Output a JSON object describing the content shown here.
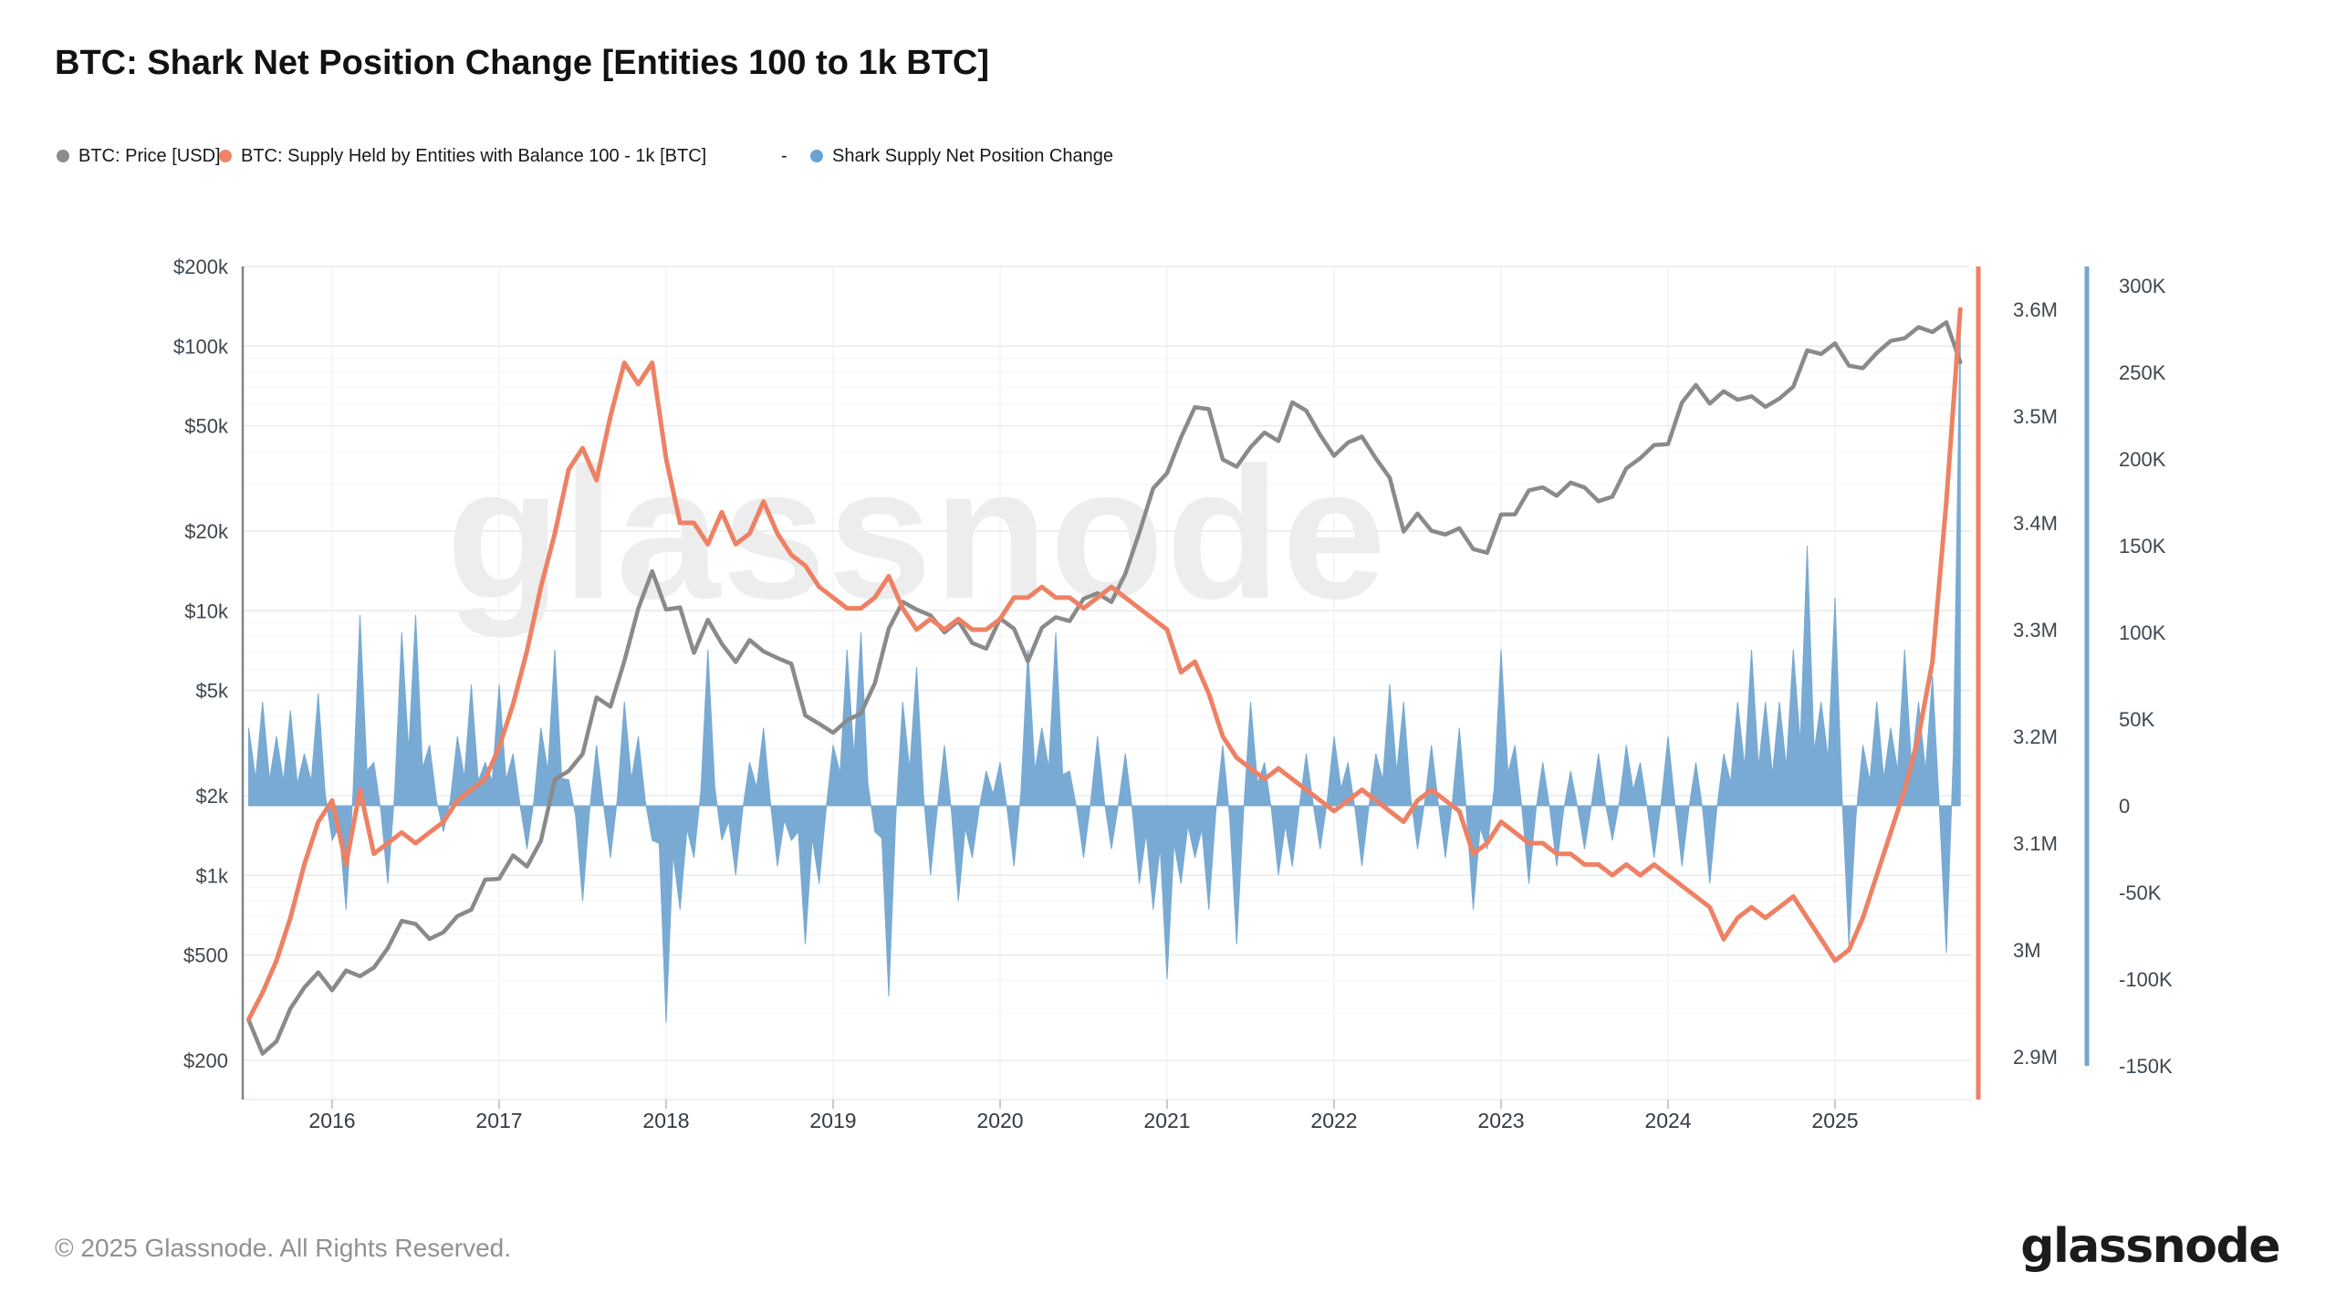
{
  "title": "BTC: Shark Net Position Change [Entities 100 to 1k BTC]",
  "legend": {
    "items": [
      {
        "label": "BTC: Price [USD]",
        "color": "#8c8c8c"
      },
      {
        "label": "BTC: Supply Held by Entities with Balance 100 - 1k [BTC]",
        "color": "#f0846a"
      },
      {
        "label": "-",
        "color": ""
      },
      {
        "label": "Shark Supply Net Position Change",
        "color": "#68a4d3"
      }
    ]
  },
  "watermark": "glassnode",
  "footer": {
    "copyright": "© 2025 Glassnode. All Rights Reserved.",
    "brand": "glassnode"
  },
  "chart_data": {
    "type": "line",
    "title": "BTC: Shark Net Position Change [Entities 100 to 1k BTC]",
    "x_start": "2015-07",
    "x_step": "1 month",
    "x_end": "2025-10",
    "x_ticks": [
      2016,
      2017,
      2018,
      2019,
      2020,
      2021,
      2022,
      2023,
      2024,
      2025
    ],
    "grid": "horizontal-log-major-minor",
    "legend_position": "top-left",
    "axes": {
      "price": {
        "side": "left",
        "scale": "log",
        "unit": "USD",
        "tick_labels": [
          "$200k",
          "$100k",
          "$50k",
          "$20k",
          "$10k",
          "$5k",
          "$2k",
          "$1k",
          "$500",
          "$200"
        ],
        "tick_values": [
          200000,
          100000,
          50000,
          20000,
          10000,
          5000,
          2000,
          1000,
          500,
          200
        ],
        "range": [
          142,
          200000
        ]
      },
      "supply": {
        "side": "right",
        "scale": "linear",
        "unit": "M BTC",
        "tick_labels": [
          "3.6M",
          "3.5M",
          "3.4M",
          "3.3M",
          "3.2M",
          "3.1M",
          "3M",
          "2.9M"
        ],
        "tick_values": [
          3.6,
          3.5,
          3.4,
          3.3,
          3.2,
          3.1,
          3.0,
          2.9
        ],
        "range": [
          2.89,
          3.64
        ]
      },
      "net_position_change": {
        "side": "right-outer",
        "scale": "linear",
        "unit": "K BTC",
        "tick_labels": [
          "300K",
          "250K",
          "200K",
          "150K",
          "100K",
          "50K",
          "0",
          "-50K",
          "-100K",
          "-150K"
        ],
        "tick_values": [
          300,
          250,
          200,
          150,
          100,
          50,
          0,
          -50,
          -100,
          -150
        ],
        "range": [
          -169,
          311
        ]
      }
    },
    "series": [
      {
        "name": "BTC: Price [USD]",
        "axis": "price",
        "type": "line",
        "color": "#8a8a8a",
        "values": [
          284,
          212,
          236,
          314,
          377,
          430,
          368,
          437,
          416,
          448,
          531,
          673,
          655,
          575,
          610,
          701,
          742,
          964,
          970,
          1190,
          1080,
          1350,
          2300,
          2480,
          2875,
          4703,
          4340,
          6450,
          10200,
          14100,
          10100,
          10300,
          6930,
          9240,
          7500,
          6400,
          7750,
          7020,
          6630,
          6300,
          4020,
          3740,
          3460,
          3850,
          4100,
          5320,
          8560,
          10800,
          10100,
          9600,
          8280,
          9150,
          7550,
          7190,
          9350,
          8550,
          6440,
          8620,
          9450,
          9140,
          11100,
          11650,
          10780,
          13800,
          19700,
          28990,
          33100,
          45200,
          58800,
          57750,
          37300,
          35000,
          41500,
          47100,
          43800,
          61300,
          57000,
          46200,
          38500,
          43200,
          45500,
          37650,
          31800,
          19900,
          23300,
          20050,
          19400,
          20500,
          17100,
          16550,
          23100,
          23150,
          28500,
          29250,
          27200,
          30480,
          29230,
          25930,
          26970,
          34500,
          37700,
          42280,
          42580,
          61200,
          71300,
          60640,
          67500,
          62680,
          64600,
          58970,
          63330,
          70220,
          96400,
          93430,
          102400,
          84350,
          82550,
          94200,
          104600,
          107100,
          118000,
          113000,
          123000,
          87000
        ]
      },
      {
        "name": "BTC: Supply Held by Entities with Balance 100 - 1k [BTC]",
        "axis": "supply",
        "type": "line",
        "color": "#ee8164",
        "values": [
          2.935,
          2.96,
          2.99,
          3.03,
          3.08,
          3.12,
          3.14,
          3.08,
          3.15,
          3.09,
          3.1,
          3.11,
          3.1,
          3.11,
          3.12,
          3.14,
          3.15,
          3.16,
          3.19,
          3.23,
          3.28,
          3.34,
          3.39,
          3.45,
          3.47,
          3.44,
          3.5,
          3.55,
          3.53,
          3.55,
          3.46,
          3.4,
          3.4,
          3.38,
          3.41,
          3.38,
          3.39,
          3.42,
          3.39,
          3.37,
          3.36,
          3.34,
          3.33,
          3.32,
          3.32,
          3.33,
          3.35,
          3.32,
          3.3,
          3.31,
          3.3,
          3.31,
          3.3,
          3.3,
          3.31,
          3.33,
          3.33,
          3.34,
          3.33,
          3.33,
          3.32,
          3.33,
          3.34,
          3.33,
          3.32,
          3.31,
          3.3,
          3.26,
          3.27,
          3.24,
          3.2,
          3.18,
          3.17,
          3.16,
          3.17,
          3.16,
          3.15,
          3.14,
          3.13,
          3.14,
          3.15,
          3.14,
          3.13,
          3.12,
          3.14,
          3.15,
          3.14,
          3.13,
          3.09,
          3.1,
          3.12,
          3.11,
          3.1,
          3.1,
          3.09,
          3.09,
          3.08,
          3.08,
          3.07,
          3.08,
          3.07,
          3.08,
          3.07,
          3.06,
          3.05,
          3.04,
          3.01,
          3.03,
          3.04,
          3.03,
          3.04,
          3.05,
          3.03,
          3.01,
          2.99,
          3.0,
          3.03,
          3.07,
          3.11,
          3.15,
          3.2,
          3.27,
          3.42,
          3.6
        ]
      },
      {
        "name": "Shark Supply Net Position Change",
        "axis": "net_position_change",
        "type": "area",
        "color": "#78aad3",
        "baseline": 0,
        "values": [
          45,
          60,
          40,
          55,
          30,
          65,
          -20,
          -60,
          110,
          25,
          -45,
          100,
          110,
          35,
          -15,
          40,
          70,
          25,
          70,
          30,
          -25,
          45,
          90,
          15,
          -55,
          35,
          -30,
          60,
          40,
          -20,
          -125,
          -60,
          -30,
          90,
          -20,
          -40,
          25,
          45,
          -35,
          -20,
          -80,
          -45,
          35,
          90,
          100,
          -15,
          -110,
          60,
          80,
          -40,
          35,
          -55,
          -30,
          20,
          25,
          -35,
          90,
          45,
          100,
          20,
          -30,
          40,
          -25,
          30,
          -45,
          -60,
          -100,
          -45,
          -30,
          -60,
          35,
          -80,
          60,
          25,
          -40,
          -35,
          30,
          -25,
          40,
          25,
          -35,
          30,
          70,
          60,
          -25,
          35,
          -30,
          45,
          -60,
          -25,
          90,
          35,
          -45,
          25,
          -35,
          20,
          -25,
          30,
          -20,
          35,
          25,
          -30,
          40,
          -35,
          25,
          -45,
          30,
          60,
          90,
          60,
          60,
          90,
          150,
          60,
          120,
          -80,
          35,
          60,
          45,
          90,
          60,
          75,
          -85,
          280
        ]
      }
    ]
  }
}
